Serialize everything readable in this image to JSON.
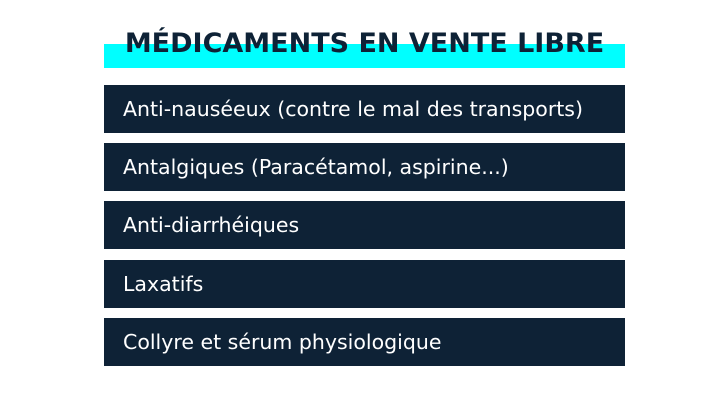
{
  "title": "MÉDICAMENTS EN VENTE LIBRE",
  "items": [
    {
      "label": "Anti-nauséeux (contre le mal des transports)"
    },
    {
      "label": "Antalgiques (Paracétamol, aspirine...)"
    },
    {
      "label": "Anti-diarrhéiques"
    },
    {
      "label": "Laxatifs"
    },
    {
      "label": "Collyre et sérum physiologique"
    }
  ],
  "colors": {
    "highlight": "#00ffff",
    "box": "#0e2236",
    "title_text": "#0e2236",
    "item_text": "#ffffff"
  }
}
